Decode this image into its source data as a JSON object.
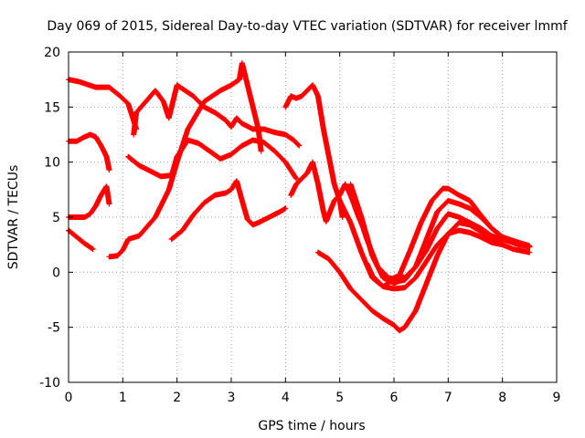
{
  "chart_data": {
    "type": "scatter",
    "title": "Day 069 of 2015, Sidereal Day-to-day VTEC variation (SDTVAR) for receiver lmmf",
    "xlabel": "GPS time / hours",
    "ylabel": "SDTVAR / TECUs",
    "xlim": [
      0,
      9
    ],
    "ylim": [
      -10,
      20
    ],
    "xticks": [
      0,
      1,
      2,
      3,
      4,
      5,
      6,
      7,
      8,
      9
    ],
    "yticks": [
      -10,
      -5,
      0,
      5,
      10,
      15,
      20
    ],
    "xtick_labels": [
      "0",
      "1",
      "2",
      "3",
      "4",
      "5",
      "6",
      "7",
      "8",
      "9"
    ],
    "ytick_labels": [
      "-10",
      "-5",
      "0",
      "5",
      "10",
      "15",
      "20"
    ],
    "grid": true,
    "marker": "+",
    "color": "#ff0000",
    "series": [
      {
        "name": "arc-1",
        "x": [
          0.0,
          0.2,
          0.5,
          0.75,
          0.95,
          1.1,
          1.25
        ],
        "y": [
          17.5,
          17.3,
          16.8,
          16.8,
          16.0,
          15.3,
          13.0
        ]
      },
      {
        "name": "arc-2",
        "x": [
          0.0,
          0.15,
          0.3,
          0.4,
          0.5,
          0.6,
          0.7,
          0.75
        ],
        "y": [
          11.9,
          11.9,
          12.3,
          12.5,
          12.3,
          11.5,
          10.5,
          9.3
        ]
      },
      {
        "name": "arc-3",
        "x": [
          0.0,
          0.2,
          0.3,
          0.4,
          0.5,
          0.6,
          0.7,
          0.75
        ],
        "y": [
          5.0,
          5.0,
          5.0,
          5.3,
          6.0,
          7.0,
          7.8,
          6.2
        ]
      },
      {
        "name": "arc-4",
        "x": [
          0.0,
          0.15,
          0.3,
          0.45
        ],
        "y": [
          3.8,
          3.2,
          2.6,
          2.1
        ]
      },
      {
        "name": "arc-5",
        "x": [
          0.75,
          0.9,
          1.0,
          1.1,
          1.3,
          1.6,
          1.85,
          2.0,
          2.2,
          2.5,
          2.8,
          3.0,
          3.15,
          3.2,
          3.3,
          3.4,
          3.5,
          3.55
        ],
        "y": [
          1.4,
          1.5,
          2.0,
          3.0,
          3.3,
          5.0,
          7.5,
          10.0,
          13.0,
          15.5,
          16.5,
          17.0,
          17.5,
          19.0,
          17.0,
          15.0,
          13.0,
          11.0
        ]
      },
      {
        "name": "arc-6",
        "x": [
          1.1,
          1.3,
          1.5,
          1.7,
          1.9,
          2.0,
          2.2,
          2.4,
          2.6,
          2.8,
          3.0,
          3.2,
          3.4,
          3.6,
          3.8,
          4.0,
          4.2
        ],
        "y": [
          10.5,
          9.7,
          9.2,
          8.7,
          8.8,
          10.5,
          12.0,
          11.7,
          11.0,
          10.3,
          10.7,
          11.5,
          12.0,
          11.8,
          11.0,
          10.0,
          8.5
        ]
      },
      {
        "name": "arc-7",
        "x": [
          1.2,
          1.25,
          1.6,
          1.75,
          1.85,
          2.0,
          2.15,
          2.3,
          2.5,
          2.7,
          2.9,
          3.0,
          3.1,
          3.2,
          3.4,
          3.6,
          3.8,
          4.0,
          4.15,
          4.25
        ],
        "y": [
          12.5,
          14.5,
          16.5,
          15.5,
          14.0,
          17.0,
          16.5,
          16.0,
          15.0,
          14.5,
          13.8,
          13.2,
          14.0,
          13.5,
          13.0,
          13.0,
          12.7,
          12.5,
          12.0,
          11.5
        ]
      },
      {
        "name": "arc-8",
        "x": [
          1.9,
          2.1,
          2.3,
          2.5,
          2.7,
          2.9,
          3.0,
          3.1,
          3.2,
          3.3,
          3.4,
          3.5,
          3.7,
          3.9,
          4.0
        ],
        "y": [
          3.0,
          3.8,
          5.2,
          6.3,
          7.0,
          7.2,
          7.5,
          8.3,
          6.5,
          4.8,
          4.3,
          4.5,
          5.0,
          5.5,
          5.8
        ]
      },
      {
        "name": "arc-9",
        "x": [
          4.0,
          4.1,
          4.2,
          4.3,
          4.4,
          4.5,
          4.6,
          4.7,
          4.8,
          4.9,
          5.0,
          5.05
        ],
        "y": [
          15.0,
          16.0,
          15.8,
          16.0,
          16.5,
          17.0,
          16.0,
          13.0,
          10.5,
          8.0,
          6.5,
          5.0
        ]
      },
      {
        "name": "arc-10",
        "x": [
          4.1,
          4.2,
          4.3,
          4.4,
          4.5,
          4.6,
          4.7,
          4.75,
          4.9,
          5.0,
          5.1,
          5.2,
          5.35,
          5.5
        ],
        "y": [
          7.0,
          8.0,
          8.5,
          9.0,
          10.0,
          8.0,
          5.5,
          4.6,
          6.5,
          7.0,
          8.0,
          7.0,
          5.0,
          3.3
        ]
      },
      {
        "name": "arc-11",
        "x": [
          4.6,
          4.8,
          5.0,
          5.2,
          5.4,
          5.6,
          5.8,
          6.0,
          6.1,
          6.2,
          6.4,
          6.6,
          6.8,
          7.0,
          7.2,
          7.4,
          7.6,
          7.8,
          8.0,
          8.2,
          8.4,
          8.5
        ],
        "y": [
          1.8,
          1.2,
          0.0,
          -1.5,
          -2.5,
          -3.5,
          -4.2,
          -4.8,
          -5.3,
          -5.0,
          -3.5,
          -1.0,
          1.5,
          3.5,
          4.5,
          4.3,
          3.7,
          3.0,
          2.5,
          2.1,
          1.9,
          1.8
        ]
      },
      {
        "name": "arc-12",
        "x": [
          5.0,
          5.2,
          5.4,
          5.6,
          5.8,
          5.9,
          6.0,
          6.1,
          6.2,
          6.4,
          6.6,
          6.8,
          7.0,
          7.2,
          7.4,
          7.6,
          7.8,
          8.0,
          8.3,
          8.5
        ],
        "y": [
          6.5,
          4.5,
          1.8,
          -0.5,
          -1.3,
          -1.0,
          -0.5,
          -0.3,
          -0.5,
          0.5,
          2.0,
          4.0,
          5.3,
          5.0,
          4.5,
          4.0,
          3.3,
          3.0,
          2.5,
          2.3
        ]
      },
      {
        "name": "arc-13",
        "x": [
          5.2,
          5.4,
          5.6,
          5.8,
          6.0,
          6.1,
          6.2,
          6.4,
          6.6,
          6.8,
          7.0,
          7.2,
          7.4,
          7.6,
          7.8,
          8.0,
          8.2,
          8.5
        ],
        "y": [
          8.0,
          5.0,
          1.5,
          -0.5,
          -1.0,
          -0.8,
          -0.7,
          0.5,
          3.0,
          5.5,
          6.5,
          6.2,
          5.8,
          5.0,
          4.0,
          3.2,
          2.8,
          2.3
        ]
      },
      {
        "name": "arc-14",
        "x": [
          5.3,
          5.5,
          5.7,
          5.9,
          6.0,
          6.1,
          6.3,
          6.5,
          6.7,
          6.9,
          7.0,
          7.2,
          7.4,
          7.6,
          7.8,
          8.0,
          8.3,
          8.5
        ],
        "y": [
          6.0,
          3.0,
          0.5,
          -0.5,
          -0.6,
          -0.3,
          2.0,
          4.5,
          6.5,
          7.6,
          7.6,
          7.0,
          6.5,
          5.2,
          4.0,
          3.2,
          2.7,
          2.4
        ]
      },
      {
        "name": "arc-15",
        "x": [
          5.5,
          5.6,
          5.8,
          6.0,
          6.2,
          6.4,
          6.6,
          6.8,
          7.0,
          7.2,
          7.4,
          7.6,
          7.8,
          8.0
        ],
        "y": [
          0.8,
          -0.3,
          -1.3,
          -1.5,
          -1.4,
          -0.5,
          1.0,
          2.5,
          3.5,
          3.8,
          3.6,
          3.2,
          2.7,
          2.5
        ]
      }
    ]
  }
}
